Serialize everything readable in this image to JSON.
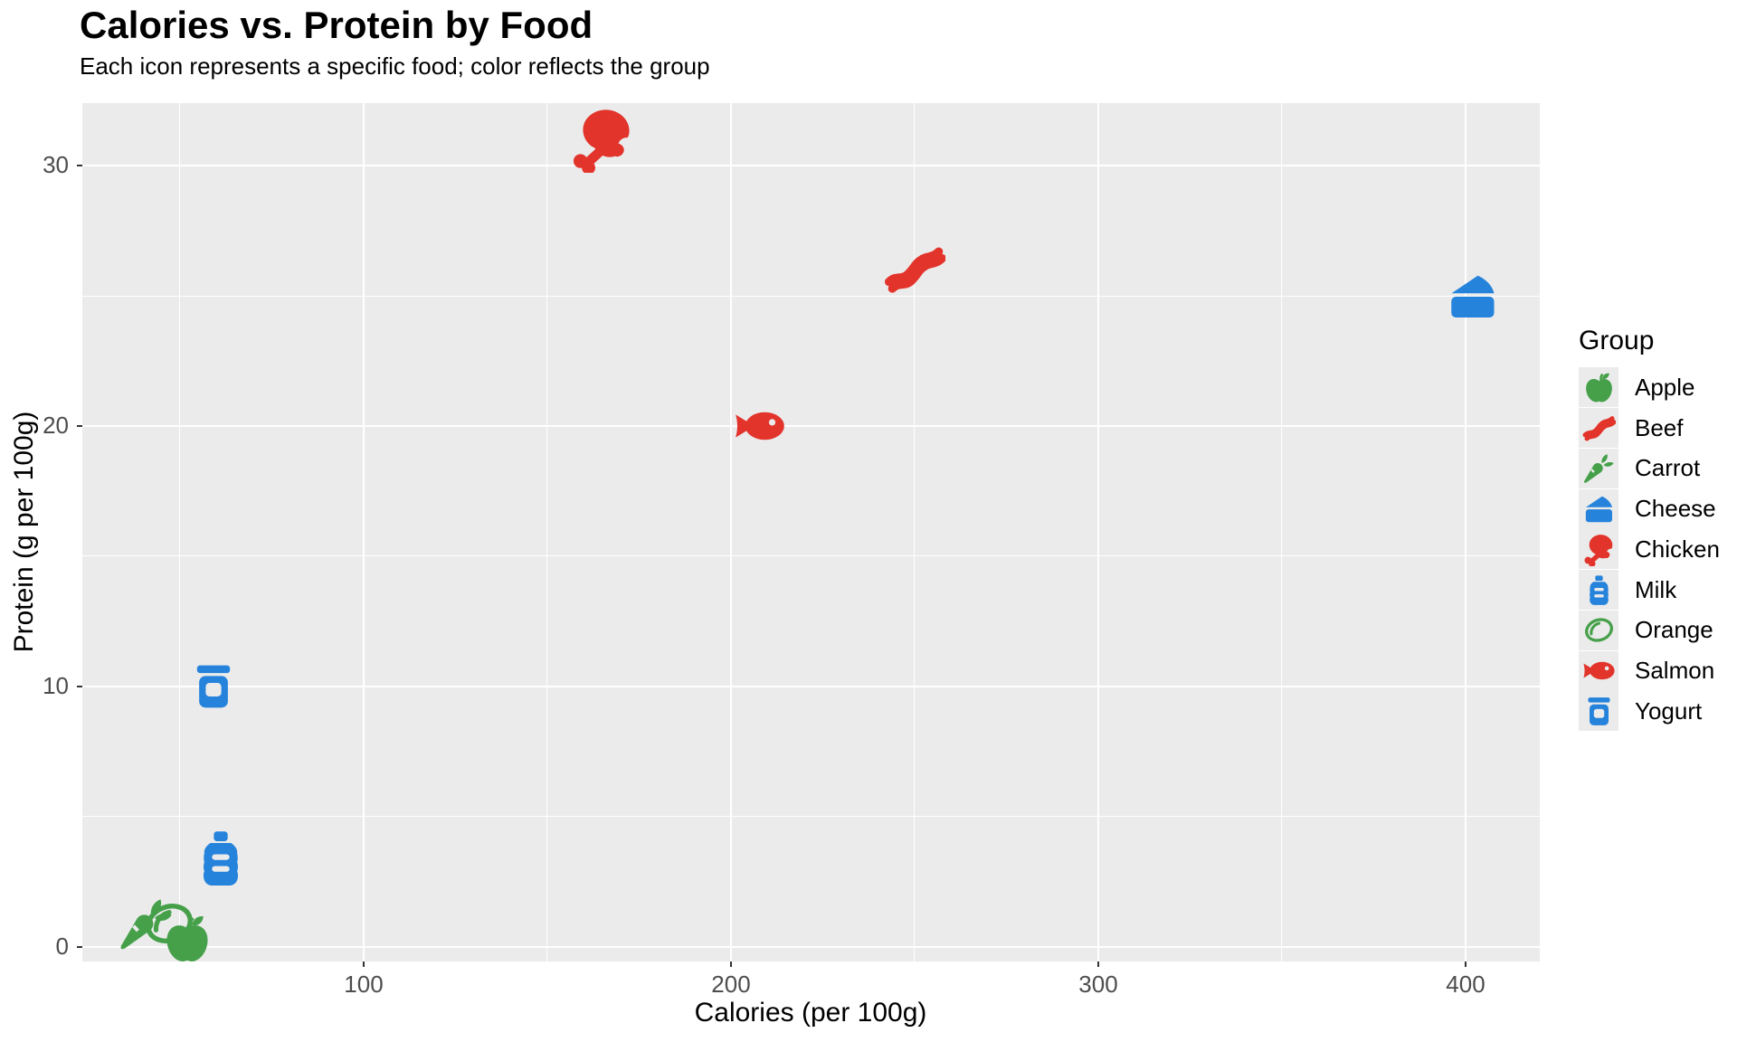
{
  "title": "Calories vs. Protein by Food",
  "subtitle": "Each icon represents a specific food; color reflects the group",
  "colors": {
    "green_group": "#45a049",
    "red_group": "#e2342b",
    "blue_group": "#2583dc",
    "panel_background": "#ebebeb",
    "gridline": "#ffffff",
    "tick_label": "#4d4d4d"
  },
  "chart_data": {
    "type": "scatter",
    "title": "Calories vs. Protein by Food",
    "subtitle": "Each icon represents a specific food; color reflects the group",
    "xlabel": "Calories (per 100g)",
    "ylabel": "Protein (g per 100g)",
    "legend_title": "Group",
    "legend_position": "right",
    "grid": true,
    "x_ticks": [
      100,
      200,
      300,
      400
    ],
    "y_ticks": [
      0,
      10,
      20,
      30
    ],
    "x_minor_ticks": [
      50,
      150,
      250,
      350
    ],
    "y_minor_ticks": [
      5,
      15,
      25
    ],
    "xlim": [
      23.4,
      420.2
    ],
    "ylim": [
      -0.56,
      32.4
    ],
    "points": [
      {
        "food": "Apple",
        "calories": 52,
        "protein": 0.3,
        "group_color": "#45a049",
        "icon": "apple-icon",
        "size": 58
      },
      {
        "food": "Beef",
        "calories": 250,
        "protein": 26,
        "group_color": "#e2342b",
        "icon": "bacon-icon",
        "size": 68
      },
      {
        "food": "Carrot",
        "calories": 41,
        "protein": 0.9,
        "group_color": "#45a049",
        "icon": "carrot-icon",
        "size": 64
      },
      {
        "food": "Cheese",
        "calories": 402,
        "protein": 25,
        "group_color": "#2583dc",
        "icon": "cheese-icon",
        "size": 60
      },
      {
        "food": "Chicken",
        "calories": 165,
        "protein": 31,
        "group_color": "#e2342b",
        "icon": "drumstick-icon",
        "size": 74
      },
      {
        "food": "Milk",
        "calories": 61,
        "protein": 3.4,
        "group_color": "#2583dc",
        "icon": "bottle-icon",
        "size": 68
      },
      {
        "food": "Orange",
        "calories": 47,
        "protein": 0.9,
        "group_color": "#45a049",
        "icon": "lemon-icon",
        "size": 62
      },
      {
        "food": "Salmon",
        "calories": 208,
        "protein": 20,
        "group_color": "#e2342b",
        "icon": "fish-icon",
        "size": 58
      },
      {
        "food": "Yogurt",
        "calories": 59,
        "protein": 10,
        "group_color": "#2583dc",
        "icon": "jar-icon",
        "size": 56
      }
    ]
  }
}
